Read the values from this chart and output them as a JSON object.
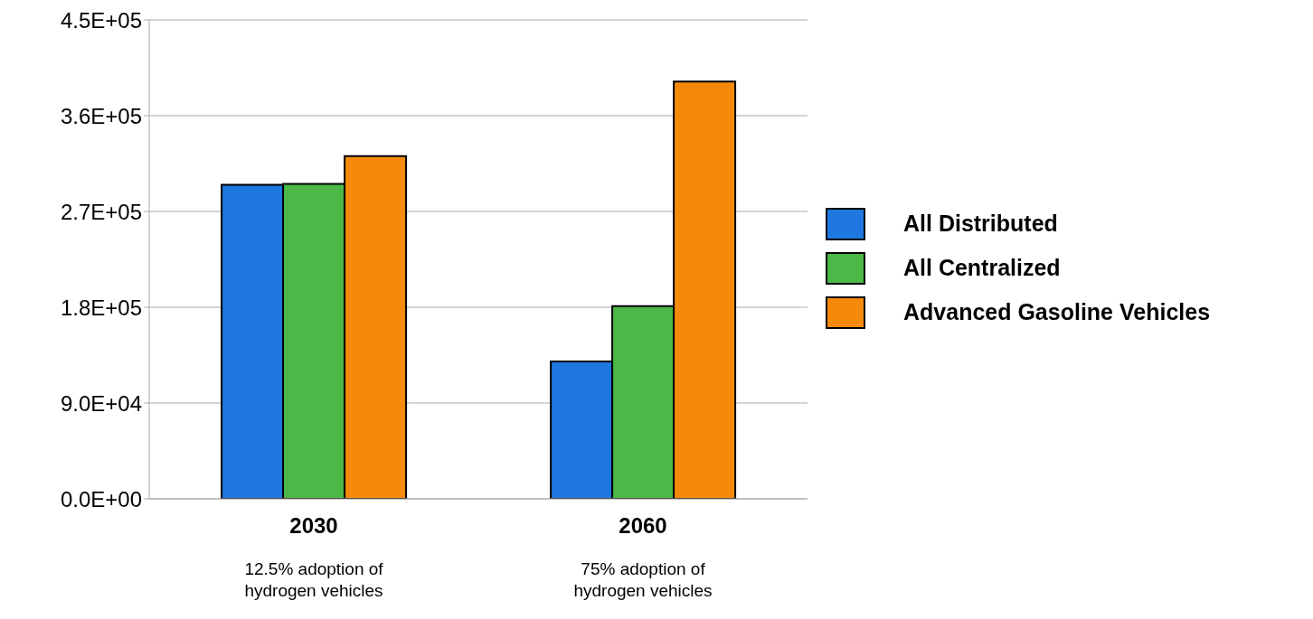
{
  "chart_data": {
    "type": "bar",
    "categories": [
      "2030",
      "2060"
    ],
    "series": [
      {
        "name": "All Distributed",
        "color": "#1f78e0",
        "values": [
          295000,
          129000
        ]
      },
      {
        "name": "All Centralized",
        "color": "#4cb848",
        "values": [
          296000,
          181000
        ]
      },
      {
        "name": "Advanced Gasoline Vehicles",
        "color": "#f58a0a",
        "values": [
          322000,
          392000
        ]
      }
    ],
    "ylim": [
      0,
      450000
    ],
    "yticks": [
      {
        "value": 0,
        "label": "0.0E+00"
      },
      {
        "value": 90000,
        "label": "9.0E+04"
      },
      {
        "value": 180000,
        "label": "1.8E+05"
      },
      {
        "value": 270000,
        "label": "2.7E+05"
      },
      {
        "value": 360000,
        "label": "3.6E+05"
      },
      {
        "value": 450000,
        "label": "4.5E+05"
      }
    ],
    "grid": "y",
    "legend": "right",
    "annotations": [
      "12.5% adoption of hydrogen vehicles",
      "75% adoption of hydrogen vehicles"
    ]
  }
}
